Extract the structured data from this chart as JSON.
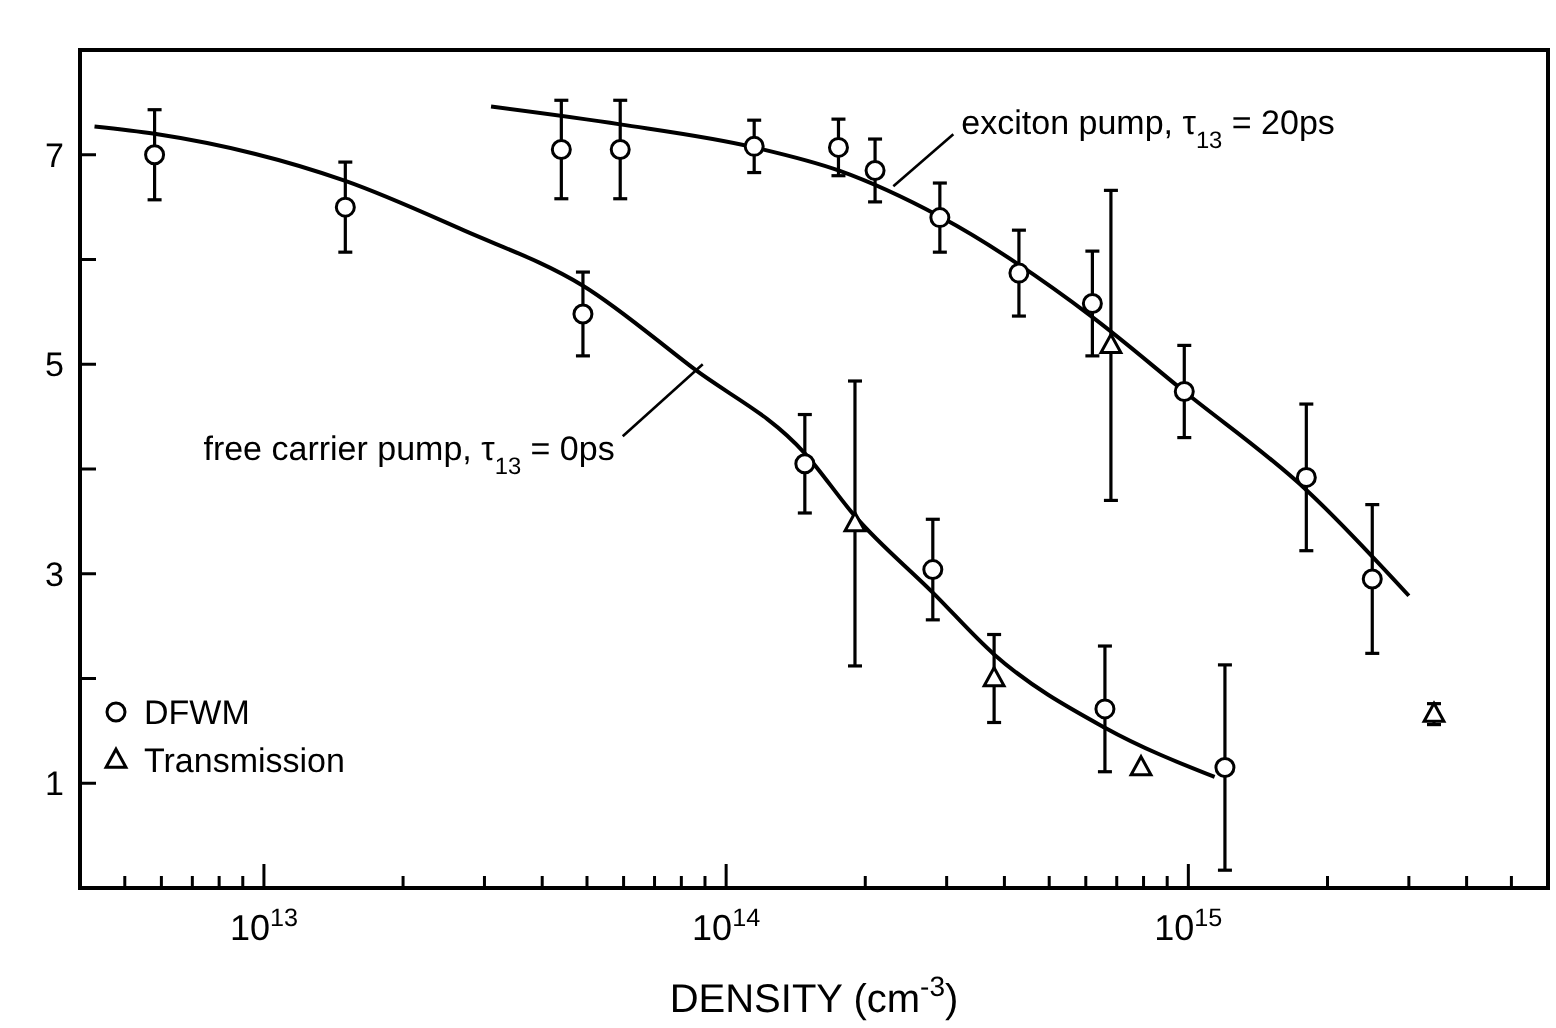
{
  "chart_data": {
    "type": "scatter",
    "xlabel": "DENSITY (cm$^{-3}$)",
    "log": "x",
    "xlim": [
      4000000000000.0,
      6000000000000000.0
    ],
    "ylim": [
      0,
      8
    ],
    "xticks": [
      {
        "value": 5000000000000.0,
        "label": null
      },
      {
        "value": 6000000000000.0,
        "label": null
      },
      {
        "value": 7000000000000.0,
        "label": null
      },
      {
        "value": 8000000000000.0,
        "label": null
      },
      {
        "value": 9000000000000.0,
        "label": null
      },
      {
        "value": 10000000000000.0,
        "label": "10$^{13}$"
      },
      {
        "value": 20000000000000.0,
        "label": null
      },
      {
        "value": 30000000000000.0,
        "label": null
      },
      {
        "value": 40000000000000.0,
        "label": null
      },
      {
        "value": 50000000000000.0,
        "label": null
      },
      {
        "value": 60000000000000.0,
        "label": null
      },
      {
        "value": 70000000000000.0,
        "label": null
      },
      {
        "value": 80000000000000.0,
        "label": null
      },
      {
        "value": 90000000000000.0,
        "label": null
      },
      {
        "value": 100000000000000.0,
        "label": "10$^{14}$"
      },
      {
        "value": 200000000000000.0,
        "label": null
      },
      {
        "value": 300000000000000.0,
        "label": null
      },
      {
        "value": 400000000000000.0,
        "label": null
      },
      {
        "value": 500000000000000.0,
        "label": null
      },
      {
        "value": 600000000000000.0,
        "label": null
      },
      {
        "value": 700000000000000.0,
        "label": null
      },
      {
        "value": 800000000000000.0,
        "label": null
      },
      {
        "value": 900000000000000.0,
        "label": null
      },
      {
        "value": 1000000000000000.0,
        "label": "10$^{15}$"
      },
      {
        "value": 2000000000000000.0,
        "label": null
      },
      {
        "value": 3000000000000000.0,
        "label": null
      },
      {
        "value": 4000000000000000.0,
        "label": null
      },
      {
        "value": 5000000000000000.0,
        "label": null
      }
    ],
    "yticks": [
      1,
      {
        "value": 2,
        "label": null
      },
      3,
      {
        "value": 4,
        "label": null
      },
      5,
      {
        "value": 6,
        "label": null
      },
      7
    ],
    "grid": false,
    "legend": "bottom left",
    "annotations": [
      {
        "text": "exciton pump, τ$_{13}$ = 20ps",
        "x": 230000000000000.0,
        "y": 6.7
      },
      {
        "text": "free carrier pump, τ$_{13}$ = 0ps",
        "x": 89000000000000.0,
        "y": 5.0
      }
    ],
    "series": [
      {
        "type": "line",
        "color": "#000000",
        "marker": "none",
        "line_style": "solid",
        "x": [
          4300000000000.0,
          5800000000000.0,
          15000000000000.0,
          27000000000000.0,
          49000000000000.0,
          85000000000000.0,
          148000000000000.0,
          190000000000000.0,
          280000000000000.0,
          380000000000000.0,
          660000000000000.0,
          1140000000000000.0
        ],
        "values": [
          7.27,
          7.2,
          6.75,
          6.28,
          5.75,
          4.96,
          4.15,
          3.55,
          2.82,
          2.23,
          1.53,
          1.06
        ]
      },
      {
        "type": "line",
        "color": "#000000",
        "marker": "none",
        "line_style": "solid",
        "x": [
          31000000000000.0,
          59000000000000.0,
          115000000000000.0,
          175000000000000.0,
          290000000000000.0,
          620000000000000.0,
          980000000000000.0,
          1800000000000000.0,
          3000000000000000.0
        ],
        "values": [
          7.46,
          7.29,
          7.07,
          6.85,
          6.41,
          5.45,
          4.74,
          3.8,
          2.79
        ]
      },
      {
        "name": "DFWM",
        "color": "#000000",
        "marker": "circle",
        "x": [
          5800000000000.0,
          15000000000000.0,
          44000000000000.0,
          59000000000000.0,
          49000000000000.0,
          115000000000000.0,
          148000000000000.0,
          175000000000000.0,
          210000000000000.0,
          290000000000000.0,
          430000000000000.0,
          620000000000000.0,
          980000000000000.0,
          1800000000000000.0,
          2500000000000000.0,
          280000000000000.0,
          660000000000000.0,
          1200000000000000.0
        ],
        "values": [
          7.0,
          6.5,
          7.05,
          7.05,
          5.48,
          7.08,
          4.05,
          7.07,
          6.85,
          6.4,
          5.87,
          5.58,
          4.74,
          3.92,
          2.95,
          3.04,
          1.71,
          1.15
        ],
        "errors": [
          0.43,
          0.43,
          0.47,
          0.47,
          0.4,
          0.25,
          0.47,
          0.27,
          0.3,
          0.33,
          0.41,
          0.5,
          0.44,
          0.7,
          0.71,
          0.48,
          0.6,
          0.98
        ]
      },
      {
        "name": "Transmission",
        "color": "#000000",
        "marker": "triangle",
        "x": [
          680000000000000.0,
          190000000000000.0,
          380000000000000.0,
          790000000000000.0,
          3400000000000000.0
        ],
        "values": [
          5.18,
          3.48,
          2.0,
          1.15,
          1.66
        ],
        "errors": [
          1.48,
          1.36,
          0.42,
          null,
          0.1
        ]
      }
    ]
  }
}
